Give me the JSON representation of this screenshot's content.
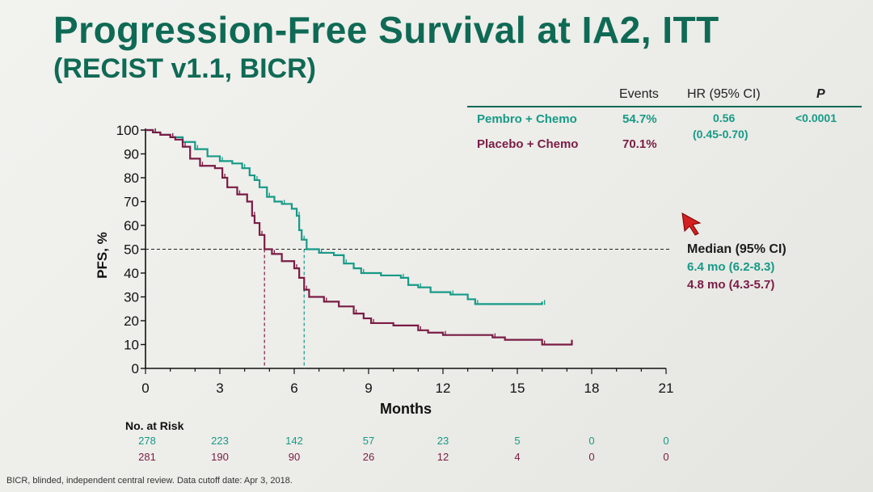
{
  "title": "Progression-Free Survival at IA2, ITT",
  "subtitle": "(RECIST v1.1, BICR)",
  "table": {
    "headers": {
      "events": "Events",
      "hr": "HR (95% CI)",
      "p": "P"
    },
    "rows": [
      {
        "label": "Pembro + Chemo",
        "events": "54.7%"
      },
      {
        "label": "Placebo + Chemo",
        "events": "70.1%"
      }
    ],
    "hr_value": "0.56",
    "hr_ci": "(0.45-0.70)",
    "p_value": "<0.0001"
  },
  "median": {
    "label": "Median (95% CI)",
    "pembro": "6.4 mo (6.2-8.3)",
    "placebo": "4.8 mo (4.3-5.7)"
  },
  "risk": {
    "title": "No. at Risk",
    "pembro": [
      "278",
      "223",
      "142",
      "57",
      "23",
      "5",
      "0",
      "0"
    ],
    "placebo": [
      "281",
      "190",
      "90",
      "26",
      "12",
      "4",
      "0",
      "0"
    ]
  },
  "footnote": "BICR, blinded, independent central review. Data cutoff date: Apr 3, 2018.",
  "colors": {
    "pembro": "#169a87",
    "placebo": "#7a1c45",
    "title": "#0f6a55",
    "cursor": "#d42020"
  },
  "chart_data": {
    "type": "line",
    "title": "Progression-Free Survival at IA2, ITT",
    "xlabel": "Months",
    "ylabel": "PFS, %",
    "xlim": [
      0,
      21
    ],
    "ylim": [
      0,
      100
    ],
    "xticks": [
      0,
      3,
      6,
      9,
      12,
      15,
      18,
      21
    ],
    "yticks": [
      0,
      10,
      20,
      30,
      40,
      50,
      60,
      70,
      80,
      90,
      100
    ],
    "reference_line_y": 50,
    "medians": {
      "Pembro + Chemo": 6.4,
      "Placebo + Chemo": 4.8
    },
    "series": [
      {
        "name": "Pembro + Chemo",
        "color": "#169a87",
        "points": [
          [
            0,
            100
          ],
          [
            0.3,
            99
          ],
          [
            0.6,
            98
          ],
          [
            1.0,
            97
          ],
          [
            1.5,
            95
          ],
          [
            2.0,
            92
          ],
          [
            2.5,
            89
          ],
          [
            3.0,
            87
          ],
          [
            3.5,
            86
          ],
          [
            3.9,
            84
          ],
          [
            4.2,
            81
          ],
          [
            4.4,
            79
          ],
          [
            4.6,
            76
          ],
          [
            4.9,
            72
          ],
          [
            5.2,
            70
          ],
          [
            5.5,
            69
          ],
          [
            5.9,
            67
          ],
          [
            6.1,
            64
          ],
          [
            6.2,
            58
          ],
          [
            6.3,
            54
          ],
          [
            6.5,
            50
          ],
          [
            7.0,
            48.5
          ],
          [
            7.6,
            47.5
          ],
          [
            8.0,
            44
          ],
          [
            8.4,
            42
          ],
          [
            8.7,
            40
          ],
          [
            9.5,
            39
          ],
          [
            10.3,
            38
          ],
          [
            10.6,
            35
          ],
          [
            11.0,
            34
          ],
          [
            11.5,
            32
          ],
          [
            12.3,
            31
          ],
          [
            13.0,
            29
          ],
          [
            13.3,
            27
          ],
          [
            14.0,
            27
          ],
          [
            16.0,
            27
          ],
          [
            16.0,
            28
          ]
        ]
      },
      {
        "name": "Placebo + Chemo",
        "color": "#7a1c45",
        "points": [
          [
            0,
            100
          ],
          [
            0.3,
            99
          ],
          [
            0.6,
            98
          ],
          [
            1.0,
            97
          ],
          [
            1.2,
            96
          ],
          [
            1.5,
            93
          ],
          [
            1.8,
            88
          ],
          [
            2.2,
            85
          ],
          [
            2.8,
            84
          ],
          [
            3.1,
            80
          ],
          [
            3.3,
            76
          ],
          [
            3.7,
            73
          ],
          [
            4.1,
            70
          ],
          [
            4.3,
            64
          ],
          [
            4.4,
            61
          ],
          [
            4.6,
            56
          ],
          [
            4.8,
            50
          ],
          [
            5.1,
            48
          ],
          [
            5.5,
            45
          ],
          [
            6.0,
            42
          ],
          [
            6.2,
            38
          ],
          [
            6.4,
            33
          ],
          [
            6.6,
            30
          ],
          [
            7.2,
            28
          ],
          [
            7.8,
            26
          ],
          [
            8.4,
            23
          ],
          [
            8.8,
            21
          ],
          [
            9.1,
            19
          ],
          [
            10.0,
            18
          ],
          [
            11.0,
            16
          ],
          [
            11.4,
            15
          ],
          [
            12.0,
            14
          ],
          [
            13.5,
            14
          ],
          [
            14.0,
            13
          ],
          [
            14.5,
            12
          ],
          [
            16.0,
            10
          ],
          [
            17.2,
            10
          ],
          [
            17.2,
            12
          ]
        ]
      }
    ],
    "risk_times": [
      0,
      3,
      6,
      9,
      12,
      15,
      18,
      21
    ]
  }
}
